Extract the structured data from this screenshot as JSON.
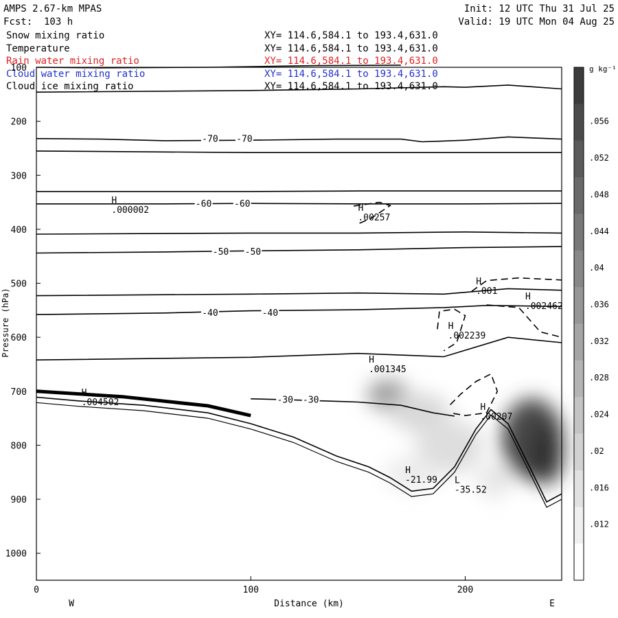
{
  "header": {
    "model": "AMPS 2.67-km MPAS",
    "fcst": "Fcst:  103 h",
    "init": "Init: 12 UTC Thu 31 Jul 25",
    "valid": "Valid: 19 UTC Mon 04 Aug 25"
  },
  "fields": [
    {
      "name": "Snow mixing ratio",
      "xy": "XY= 114.6,584.1 to 193.4,631.0",
      "color": "#000000"
    },
    {
      "name": "Temperature",
      "xy": "XY= 114.6,584.1 to 193.4,631.0",
      "color": "#000000"
    },
    {
      "name": "Rain water mixing ratio",
      "xy": "XY= 114.6,584.1 to 193.4,631.0",
      "color": "#e02020"
    },
    {
      "name": "Cloud water mixing ratio",
      "xy": "XY= 114.6,584.1 to 193.4,631.0",
      "color": "#2030d0"
    },
    {
      "name": "Cloud ice mixing ratio",
      "xy": "XY= 114.6,584.1 to 193.4,631.0",
      "color": "#000000"
    }
  ],
  "chart_data": {
    "type": "heatmap",
    "xlabel": "Distance (km)",
    "ylabel": "Pressure (hPa)",
    "xlim": [
      0,
      245
    ],
    "ylim": [
      1050,
      100
    ],
    "x_ticks": [
      0,
      100,
      200
    ],
    "y_ticks": [
      100,
      200,
      300,
      400,
      500,
      600,
      700,
      800,
      900,
      1000
    ],
    "west_label": "W",
    "east_label": "E",
    "colorbar": {
      "unit": "g kg⁻¹",
      "ticks": [
        ".056",
        ".052",
        ".048",
        ".044",
        ".04",
        ".036",
        ".032",
        ".028",
        ".024",
        ".02",
        ".016",
        ".012"
      ],
      "min": 0.008,
      "max": 0.062
    },
    "temperature_contours": [
      {
        "label": "-70",
        "x": [
          0,
          30,
          60,
          100,
          140,
          170,
          180,
          200,
          220,
          245
        ],
        "p": [
          232,
          233,
          236,
          235,
          233,
          233,
          238,
          235,
          229,
          233
        ],
        "labels_at": [
          [
            81,
            "-70"
          ],
          [
            97,
            "-70"
          ]
        ]
      },
      {
        "label": "-60",
        "x": [
          0,
          60,
          100,
          150,
          200,
          245
        ],
        "p": [
          353,
          353,
          352,
          353,
          353,
          352
        ],
        "labels_at": [
          [
            78,
            "-60"
          ],
          [
            96,
            "-60"
          ]
        ]
      },
      {
        "label": "-50",
        "x": [
          0,
          60,
          100,
          150,
          200,
          245
        ],
        "p": [
          444,
          442,
          440,
          438,
          434,
          432
        ],
        "labels_at": [
          [
            86,
            "-50"
          ],
          [
            101,
            "-50"
          ]
        ]
      },
      {
        "label": "-40",
        "x": [
          0,
          60,
          100,
          150,
          190,
          210,
          245
        ],
        "p": [
          558,
          555,
          551,
          549,
          545,
          541,
          543
        ],
        "labels_at": [
          [
            81,
            "-40"
          ],
          [
            109,
            "-40"
          ]
        ]
      },
      {
        "label": "-30",
        "x": [
          100,
          120,
          150,
          170,
          185,
          195
        ],
        "p": [
          714,
          716,
          720,
          726,
          740,
          746
        ],
        "labels_at": [
          [
            116,
            "-30"
          ],
          [
            128,
            "-30"
          ]
        ]
      }
    ],
    "extrema": [
      {
        "kind": "H",
        "value": ".000002",
        "x": 35,
        "p": 362
      },
      {
        "kind": "H",
        "value": ".00257",
        "x": 150,
        "p": 376
      },
      {
        "kind": "H",
        "value": ".001",
        "x": 205,
        "p": 512
      },
      {
        "kind": "H",
        "value": ".002462",
        "x": 228,
        "p": 540
      },
      {
        "kind": "H",
        "value": ".002239",
        "x": 192,
        "p": 595
      },
      {
        "kind": "H",
        "value": ".001345",
        "x": 155,
        "p": 657
      },
      {
        "kind": "H",
        "value": ".004502",
        "x": 21,
        "p": 718
      },
      {
        "kind": "H",
        "value": ".00207",
        "x": 207,
        "p": 745
      },
      {
        "kind": "H",
        "value": "-21.99",
        "x": 172,
        "p": 862
      },
      {
        "kind": "L",
        "value": "-35.52",
        "x": 195,
        "p": 880
      }
    ]
  }
}
